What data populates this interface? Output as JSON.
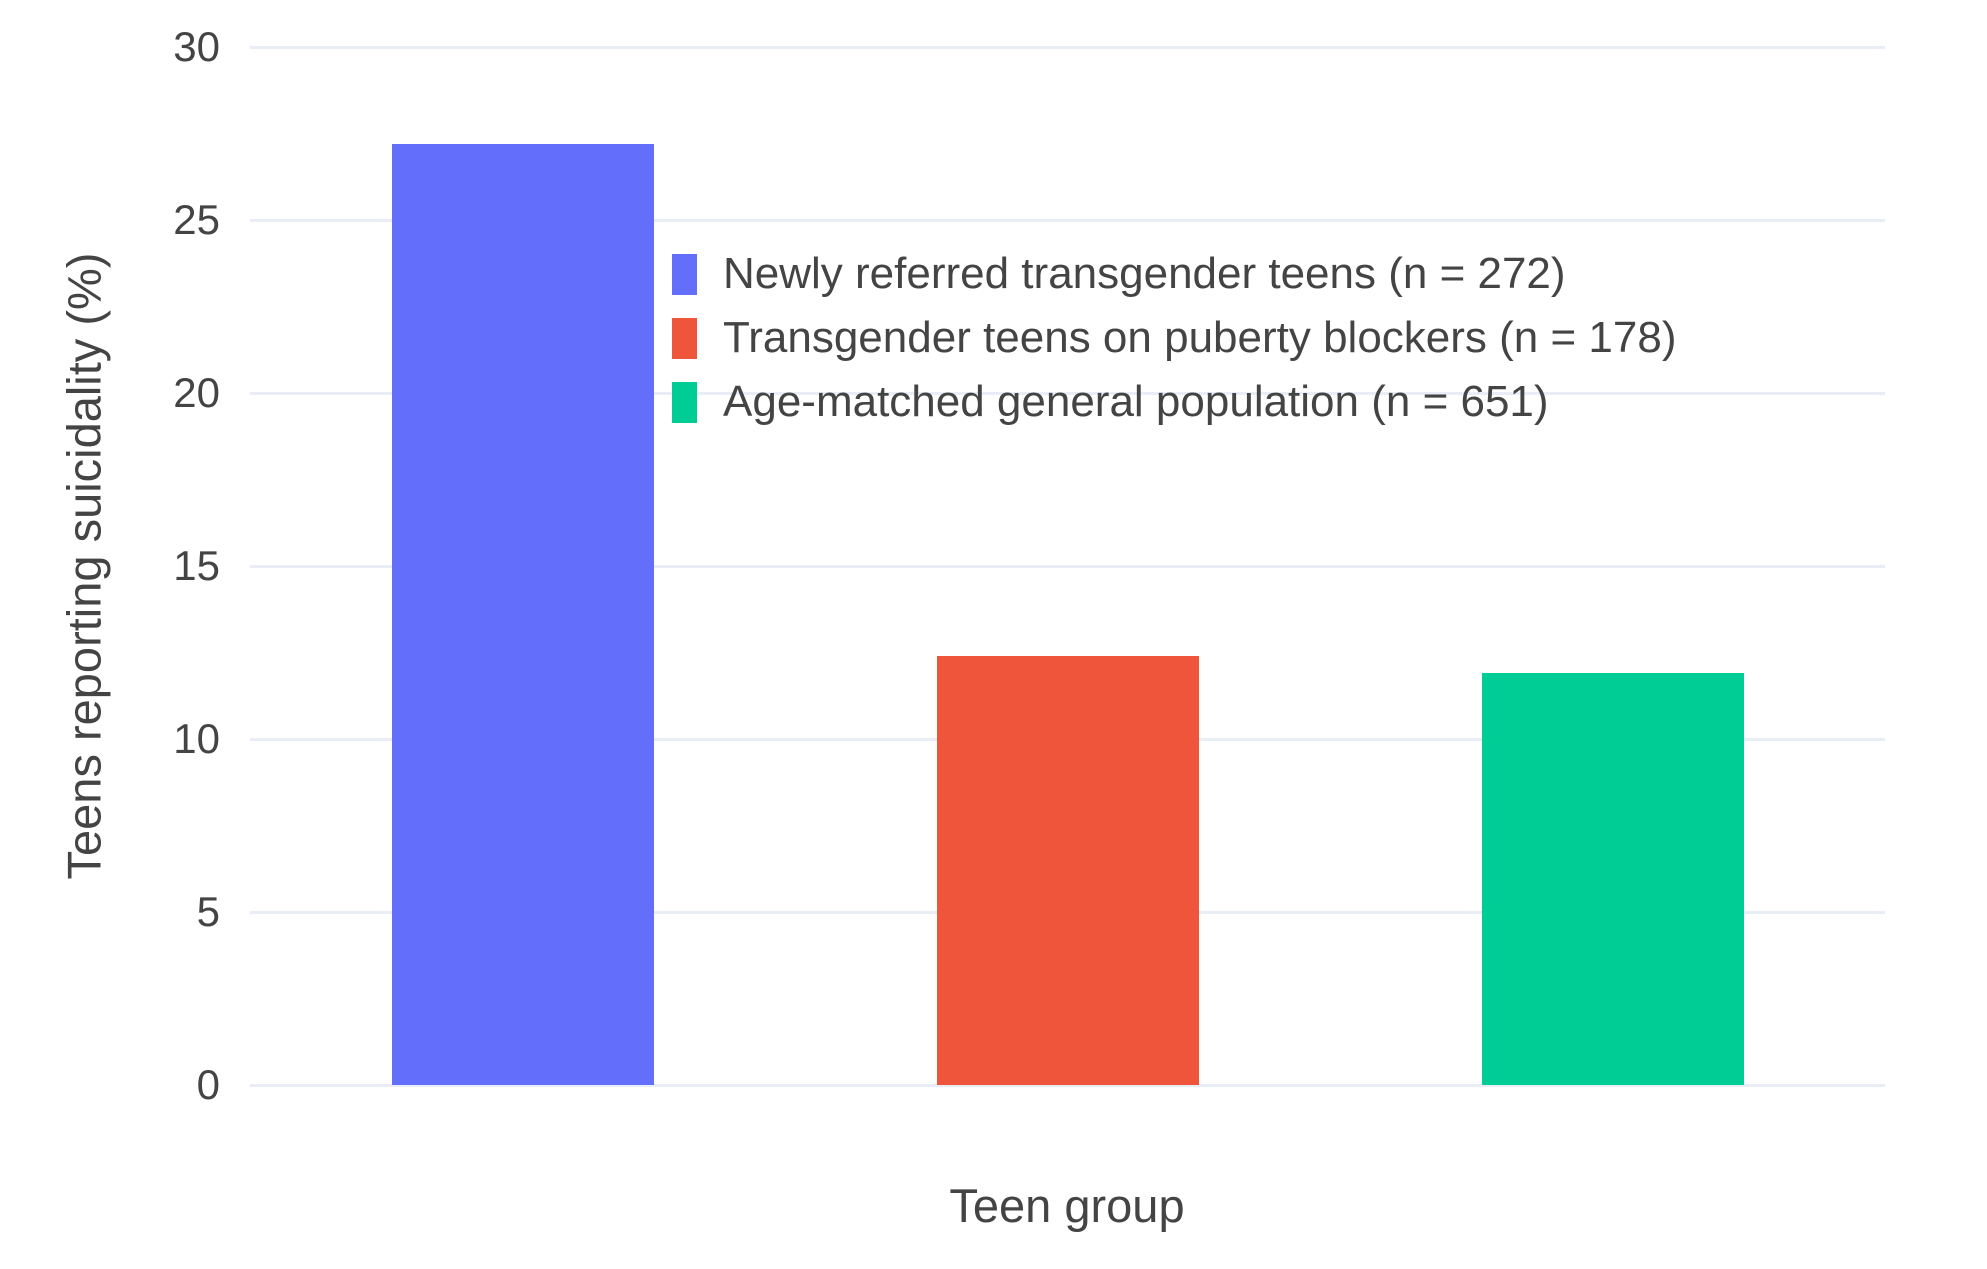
{
  "chart_data": {
    "type": "bar",
    "title": "",
    "xlabel": "Teen group",
    "ylabel": "Teens reporting suicidality (%)",
    "ylim": [
      0,
      30
    ],
    "yticks": [
      0,
      5,
      10,
      15,
      20,
      25,
      30
    ],
    "grid": "horizontal gridlines every 5, light gray, white background",
    "legend_position": "inside plot, upper area right of first bar",
    "categories": [
      "Newly referred transgender teens (n = 272)",
      "Transgender teens on puberty blockers (n = 178)",
      "Age-matched general population (n = 651)"
    ],
    "series": [
      {
        "name": "Newly referred transgender teens (n = 272)",
        "value": 27.2,
        "color": "#636efa"
      },
      {
        "name": "Transgender teens on puberty blockers (n = 178)",
        "value": 12.4,
        "color": "#ef553b"
      },
      {
        "name": "Age-matched general population (n = 651)",
        "value": 11.9,
        "color": "#00cc96"
      }
    ]
  },
  "colors": {
    "background": "#ffffff",
    "gridline": "#e9edf5",
    "text": "#444444"
  }
}
